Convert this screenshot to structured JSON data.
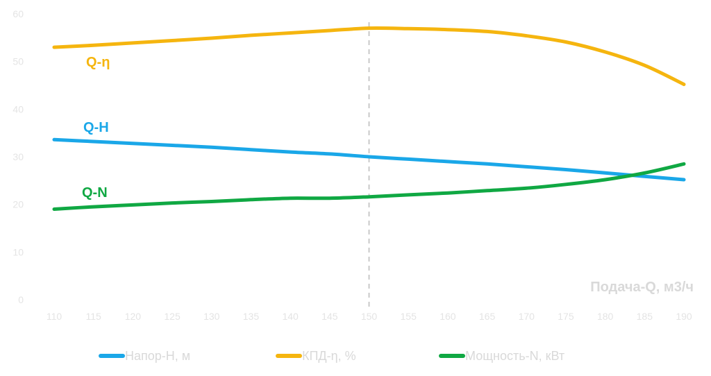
{
  "chart_data": {
    "type": "line",
    "x": [
      110,
      115,
      120,
      125,
      130,
      135,
      140,
      145,
      150,
      155,
      160,
      165,
      170,
      175,
      180,
      185,
      190
    ],
    "xlabel": "Подача-Q, м3/ч",
    "ylim": [
      0,
      60
    ],
    "yticks": [
      0,
      10,
      20,
      30,
      40,
      50,
      60
    ],
    "marker_x": 150,
    "grid": false,
    "legend_position": "bottom",
    "series": [
      {
        "name": "Напор-Н, м",
        "label": "Q-H",
        "color": "#1aa7e8",
        "values": [
          33.6,
          33.2,
          32.8,
          32.4,
          32.0,
          31.5,
          31.0,
          30.6,
          30.0,
          29.5,
          29.0,
          28.5,
          27.9,
          27.3,
          26.6,
          25.9,
          25.2
        ]
      },
      {
        "name": "КПД-η, %",
        "label": "Q-η",
        "color": "#f5b50f",
        "values": [
          53.0,
          53.4,
          53.9,
          54.4,
          54.9,
          55.5,
          56.0,
          56.5,
          57.0,
          56.9,
          56.7,
          56.3,
          55.4,
          54.1,
          52.0,
          49.2,
          45.2
        ]
      },
      {
        "name": "Мощность-N, кВт",
        "label": "Q-N",
        "color": "#10a843",
        "values": [
          19.0,
          19.5,
          19.9,
          20.3,
          20.6,
          21.0,
          21.3,
          21.3,
          21.6,
          22.0,
          22.4,
          22.9,
          23.4,
          24.2,
          25.2,
          26.6,
          28.5
        ]
      }
    ]
  }
}
